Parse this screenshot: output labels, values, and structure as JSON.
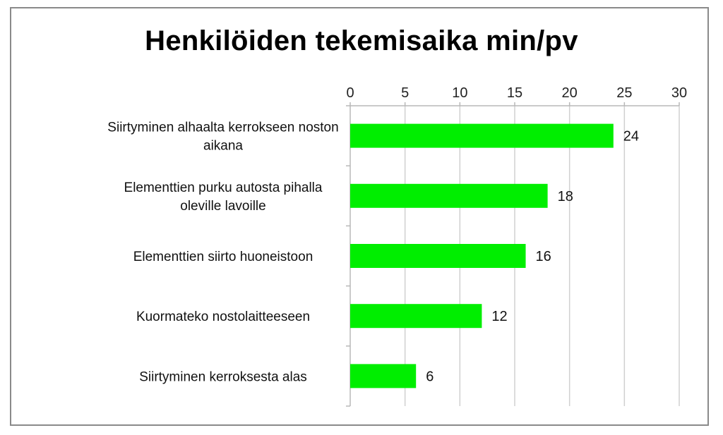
{
  "chart_data": {
    "type": "bar",
    "orientation": "horizontal",
    "title": "Henkilöiden tekemisaika min/pv",
    "categories": [
      [
        "Siirtyminen alhaalta kerrokseen noston",
        "aikana"
      ],
      [
        "Elementtien purku autosta pihalla",
        "oleville lavoille"
      ],
      [
        "Elementtien siirto huoneistoon"
      ],
      [
        "Kuormateko nostolaitteeseen"
      ],
      [
        "Siirtyminen kerroksesta alas"
      ]
    ],
    "values": [
      24,
      18,
      16,
      12,
      6
    ],
    "xlim": [
      0,
      30
    ],
    "xticks": [
      0,
      5,
      10,
      15,
      20,
      25,
      30
    ],
    "axis_position": "top",
    "gridlines": true,
    "data_labels": true,
    "bar_color": "#00ee00"
  }
}
